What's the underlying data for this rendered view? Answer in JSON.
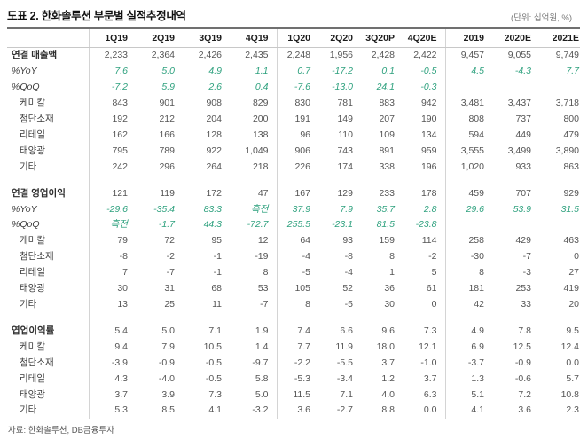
{
  "page": {
    "title": "도표 2. 한화솔루션 부문별 실적추정내역",
    "unit_note": "(단위: 십억원, %)",
    "source": "자료: 한화솔루션, DB금융투자"
  },
  "colors": {
    "green_accent": "#2ea17e",
    "header_rule": "#707070",
    "text_dark": "#2e2e2e",
    "text_value": "#555555"
  },
  "table": {
    "columns": [
      "",
      "1Q19",
      "2Q19",
      "3Q19",
      "4Q19",
      "1Q20",
      "2Q20",
      "3Q20P",
      "4Q20E",
      "2019",
      "2020E",
      "2021E"
    ],
    "sections": [
      {
        "name": "revenue",
        "rows": [
          {
            "label": "연결 매출액",
            "style": "main",
            "values": [
              "2,233",
              "2,364",
              "2,426",
              "2,435",
              "2,248",
              "1,956",
              "2,428",
              "2,422",
              "9,457",
              "9,055",
              "9,749"
            ]
          },
          {
            "label": "%YoY",
            "style": "pct",
            "values": [
              "7.6",
              "5.0",
              "4.9",
              "1.1",
              "0.7",
              "-17.2",
              "0.1",
              "-0.5",
              "4.5",
              "-4.3",
              "7.7"
            ]
          },
          {
            "label": "%QoQ",
            "style": "pct",
            "values": [
              "-7.2",
              "5.9",
              "2.6",
              "0.4",
              "-7.6",
              "-13.0",
              "24.1",
              "-0.3",
              "",
              "",
              ""
            ]
          },
          {
            "label": "케미칼",
            "style": "seg",
            "values": [
              "843",
              "901",
              "908",
              "829",
              "830",
              "781",
              "883",
              "942",
              "3,481",
              "3,437",
              "3,718"
            ]
          },
          {
            "label": "첨단소재",
            "style": "seg",
            "values": [
              "192",
              "212",
              "204",
              "200",
              "191",
              "149",
              "207",
              "190",
              "808",
              "737",
              "800"
            ]
          },
          {
            "label": "리테일",
            "style": "seg",
            "values": [
              "162",
              "166",
              "128",
              "138",
              "96",
              "110",
              "109",
              "134",
              "594",
              "449",
              "479"
            ]
          },
          {
            "label": "태양광",
            "style": "seg",
            "values": [
              "795",
              "789",
              "922",
              "1,049",
              "906",
              "743",
              "891",
              "959",
              "3,555",
              "3,499",
              "3,890"
            ]
          },
          {
            "label": "기타",
            "style": "seg",
            "values": [
              "242",
              "296",
              "264",
              "218",
              "226",
              "174",
              "338",
              "196",
              "1,020",
              "933",
              "863"
            ]
          }
        ]
      },
      {
        "name": "operating_profit",
        "rows": [
          {
            "label": "연결 영업이익",
            "style": "main",
            "values": [
              "121",
              "119",
              "172",
              "47",
              "167",
              "129",
              "233",
              "178",
              "459",
              "707",
              "929"
            ]
          },
          {
            "label": "%YoY",
            "style": "pct",
            "values": [
              "-29.6",
              "-35.4",
              "83.3",
              "흑전",
              "37.9",
              "7.9",
              "35.7",
              "2.8",
              "29.6",
              "53.9",
              "31.5"
            ]
          },
          {
            "label": "%QoQ",
            "style": "pct",
            "values": [
              "흑전",
              "-1.7",
              "44.3",
              "-72.7",
              "255.5",
              "-23.1",
              "81.5",
              "-23.8",
              "",
              "",
              ""
            ]
          },
          {
            "label": "케미칼",
            "style": "seg",
            "values": [
              "79",
              "72",
              "95",
              "12",
              "64",
              "93",
              "159",
              "114",
              "258",
              "429",
              "463"
            ]
          },
          {
            "label": "첨단소재",
            "style": "seg",
            "values": [
              "-8",
              "-2",
              "-1",
              "-19",
              "-4",
              "-8",
              "8",
              "-2",
              "-30",
              "-7",
              "0"
            ]
          },
          {
            "label": "리테일",
            "style": "seg",
            "values": [
              "7",
              "-7",
              "-1",
              "8",
              "-5",
              "-4",
              "1",
              "5",
              "8",
              "-3",
              "27"
            ]
          },
          {
            "label": "태양광",
            "style": "seg",
            "values": [
              "30",
              "31",
              "68",
              "53",
              "105",
              "52",
              "36",
              "61",
              "181",
              "253",
              "419"
            ]
          },
          {
            "label": "기타",
            "style": "seg",
            "values": [
              "13",
              "25",
              "11",
              "-7",
              "8",
              "-5",
              "30",
              "0",
              "42",
              "33",
              "20"
            ]
          }
        ]
      },
      {
        "name": "operating_margin",
        "rows": [
          {
            "label": "엽업이익률",
            "style": "main",
            "values": [
              "5.4",
              "5.0",
              "7.1",
              "1.9",
              "7.4",
              "6.6",
              "9.6",
              "7.3",
              "4.9",
              "7.8",
              "9.5"
            ]
          },
          {
            "label": "케미칼",
            "style": "seg",
            "values": [
              "9.4",
              "7.9",
              "10.5",
              "1.4",
              "7.7",
              "11.9",
              "18.0",
              "12.1",
              "6.9",
              "12.5",
              "12.4"
            ]
          },
          {
            "label": "첨단소재",
            "style": "seg",
            "values": [
              "-3.9",
              "-0.9",
              "-0.5",
              "-9.7",
              "-2.2",
              "-5.5",
              "3.7",
              "-1.0",
              "-3.7",
              "-0.9",
              "0.0"
            ]
          },
          {
            "label": "리테일",
            "style": "seg",
            "values": [
              "4.3",
              "-4.0",
              "-0.5",
              "5.8",
              "-5.3",
              "-3.4",
              "1.2",
              "3.7",
              "1.3",
              "-0.6",
              "5.7"
            ]
          },
          {
            "label": "태양광",
            "style": "seg",
            "values": [
              "3.7",
              "3.9",
              "7.3",
              "5.0",
              "11.5",
              "7.1",
              "4.0",
              "6.3",
              "5.1",
              "7.2",
              "10.8"
            ]
          },
          {
            "label": "기타",
            "style": "seg",
            "values": [
              "5.3",
              "8.5",
              "4.1",
              "-3.2",
              "3.6",
              "-2.7",
              "8.8",
              "0.0",
              "4.1",
              "3.6",
              "2.3"
            ]
          }
        ]
      }
    ]
  }
}
